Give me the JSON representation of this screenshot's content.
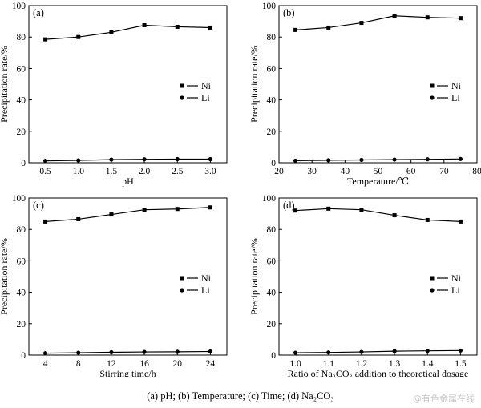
{
  "chart_data": [
    {
      "type": "line",
      "panel_label": "(a)",
      "xlabel": "pH",
      "ylabel": "Precipitation rate/%",
      "x": [
        0.5,
        1.0,
        1.5,
        2.0,
        2.5,
        3.0
      ],
      "xlim": [
        0.25,
        3.25
      ],
      "xticks": [
        "0.5",
        "1.0",
        "1.5",
        "2.0",
        "2.5",
        "3.0"
      ],
      "ylim": [
        0,
        100
      ],
      "yticks": [
        "0",
        "20",
        "40",
        "60",
        "80",
        "100"
      ],
      "legend_position": "middle-right",
      "series": [
        {
          "name": "Ni",
          "marker": "square",
          "values": [
            78.5,
            80,
            83,
            87.5,
            86.5,
            86
          ]
        },
        {
          "name": "Li",
          "marker": "circle",
          "values": [
            1.2,
            1.5,
            2,
            2.2,
            2.3,
            2.3
          ]
        }
      ]
    },
    {
      "type": "line",
      "panel_label": "(b)",
      "xlabel": "Temperature/℃",
      "ylabel": "Precipitation rate/%",
      "x": [
        25,
        35,
        45,
        55,
        65,
        75
      ],
      "xlim": [
        20,
        80
      ],
      "xticks": [
        "20",
        "30",
        "40",
        "50",
        "60",
        "70",
        "80"
      ],
      "ylim": [
        0,
        100
      ],
      "yticks": [
        "0",
        "20",
        "40",
        "60",
        "80",
        "100"
      ],
      "legend_position": "middle-right",
      "series": [
        {
          "name": "Ni",
          "marker": "square",
          "values": [
            84.5,
            86,
            89,
            93.5,
            92.5,
            92
          ]
        },
        {
          "name": "Li",
          "marker": "circle",
          "values": [
            1.3,
            1.6,
            1.8,
            2,
            2.2,
            2.4
          ]
        }
      ]
    },
    {
      "type": "line",
      "panel_label": "(c)",
      "xlabel": "Stirring time/h",
      "ylabel": "Precipitation rate/%",
      "x": [
        4,
        8,
        12,
        16,
        20,
        24
      ],
      "xlim": [
        2,
        26
      ],
      "xticks": [
        "4",
        "8",
        "12",
        "16",
        "20",
        "24"
      ],
      "ylim": [
        0,
        100
      ],
      "yticks": [
        "0",
        "20",
        "40",
        "60",
        "80",
        "100"
      ],
      "legend_position": "middle-right",
      "series": [
        {
          "name": "Ni",
          "marker": "square",
          "values": [
            85,
            86.5,
            89.5,
            92.5,
            93,
            94
          ]
        },
        {
          "name": "Li",
          "marker": "circle",
          "values": [
            1.2,
            1.5,
            1.8,
            2,
            2.1,
            2.3
          ]
        }
      ]
    },
    {
      "type": "line",
      "panel_label": "(d)",
      "xlabel": "Ratio of Na₂CO₃ addition to theoretical dosage",
      "ylabel": "Precipitation rate/%",
      "x": [
        1.0,
        1.1,
        1.2,
        1.3,
        1.4,
        1.5
      ],
      "xlim": [
        0.95,
        1.55
      ],
      "xticks": [
        "1.0",
        "1.1",
        "1.2",
        "1.3",
        "1.4",
        "1.5"
      ],
      "ylim": [
        0,
        100
      ],
      "yticks": [
        "0",
        "20",
        "40",
        "60",
        "80",
        "100"
      ],
      "legend_position": "middle-right",
      "series": [
        {
          "name": "Ni",
          "marker": "square",
          "values": [
            92,
            93.2,
            92.5,
            89,
            86,
            85
          ]
        },
        {
          "name": "Li",
          "marker": "circle",
          "values": [
            1.5,
            1.7,
            2,
            2.5,
            2.7,
            2.9
          ]
        }
      ]
    }
  ],
  "caption": "(a) pH; (b) Temperature; (c) Time; (d) Na₂CO₃",
  "watermark": "@有色金属在线",
  "colors": {
    "line": "#000000",
    "background": "#ffffff"
  }
}
